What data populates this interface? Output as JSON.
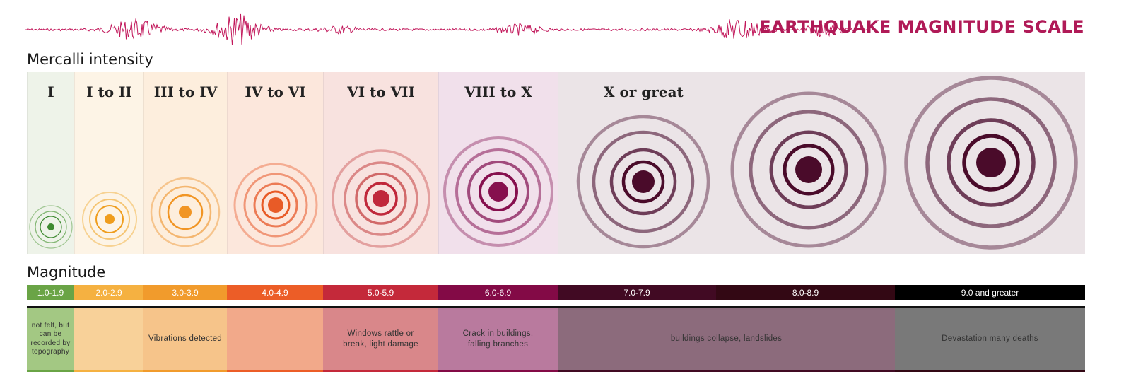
{
  "title": "EARTHQUAKE MAGNITUDE SCALE",
  "mercalli_label": "Mercalli intensity",
  "magnitude_label": "Magnitude",
  "intensity_columns": [
    {
      "label": "I",
      "bg": "#eef3e9",
      "ring": "#5ea14b",
      "core": "#3e8a31",
      "level": 1
    },
    {
      "label": "I to II",
      "bg": "#fdf4e6",
      "ring": "#f2b64d",
      "core": "#ef9d1d",
      "level": 2
    },
    {
      "label": "III to IV",
      "bg": "#fdeedd",
      "ring": "#f0a349",
      "core": "#f19524",
      "level": 3
    },
    {
      "label": "IV to VI",
      "bg": "#fce7dc",
      "ring": "#ec7b55",
      "core": "#e85b27",
      "level": 4
    },
    {
      "label": "VI to VII",
      "bg": "#f8e2df",
      "ring": "#d16969",
      "core": "#c0283b",
      "level": 5
    },
    {
      "label": "VIII to X",
      "bg": "#f1e0eb",
      "ring": "#a14a7c",
      "core": "#860f4e",
      "level": 6
    },
    {
      "label": "X or great",
      "bg": "#ebe4e7",
      "ring": "#6e3d58",
      "core": "#4a0b2a",
      "level": 7
    }
  ],
  "magnitudes": [
    {
      "label": "1.0-1.9",
      "color": "#6aa446"
    },
    {
      "label": "2.0-2.9",
      "color": "#f5b141"
    },
    {
      "label": "3.0-3.9",
      "color": "#f19b2c"
    },
    {
      "label": "4.0-4.9",
      "color": "#ec5d27"
    },
    {
      "label": "5.0-5.9",
      "color": "#c4293a"
    },
    {
      "label": "6.0-6.9",
      "color": "#830a46"
    },
    {
      "label": "7.0-7.9",
      "color": "#410a23"
    },
    {
      "label": "8.0-8.9",
      "color": "#330814"
    },
    {
      "label": "9.0 and greater",
      "color": "#000000"
    }
  ],
  "effects": [
    {
      "text": "not felt, but can be recorded by topography",
      "color": "#a3c883"
    },
    {
      "text": "",
      "color": "#f8d199"
    },
    {
      "text": "Vibrations detected",
      "color": "#f6c48a"
    },
    {
      "text": "",
      "color": "#f2a98a"
    },
    {
      "text": "Windows rattle or break, light damage",
      "color": "#d9878a"
    },
    {
      "text": "Crack in buildings, falling branches",
      "color": "#b97a9e"
    },
    {
      "text": "buildings collapse, landslides",
      "color": "#8c6b7c"
    },
    {
      "text": "Devastation many deaths",
      "color": "#797979"
    }
  ]
}
